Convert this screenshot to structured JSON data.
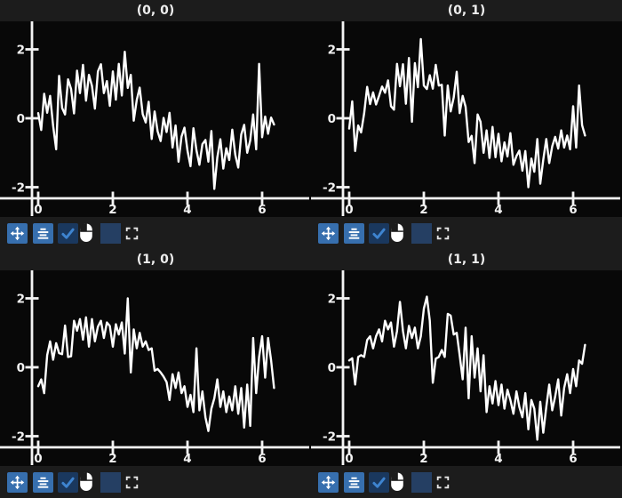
{
  "page": {
    "colors": {
      "page-bg": "#1c1c1c",
      "plot-bg": "#080808",
      "axis": "#f3f3f3",
      "line": "#ffffff",
      "title-fg": "#ededed",
      "btn-blue": "#376fae",
      "btn-glyph": "#ffffff",
      "check-bg": "#1a385e",
      "check-fg": "#3e84d0",
      "swatch": "#253f63",
      "glyph": "#e8e8e8"
    }
  },
  "toolbar": {
    "note": "identical toolbar repeated under each of the four subplots",
    "icons": [
      {
        "name": "pan-move",
        "kind": "button",
        "bg": "#376fae"
      },
      {
        "name": "align-center",
        "kind": "button",
        "bg": "#376fae"
      },
      {
        "name": "checkbox-checked",
        "kind": "checkbox",
        "bg": "#1a385e",
        "check": "#3e84d0"
      },
      {
        "name": "mouse",
        "kind": "glyph",
        "color": "#ffffff"
      },
      {
        "name": "color-swatch",
        "kind": "swatch",
        "bg": "#253f63"
      },
      {
        "name": "expand-corners",
        "kind": "glyph-outline",
        "color": "#e8e8e8"
      }
    ]
  },
  "chart_data": {
    "type": "line",
    "layout": "2x2 grid of subplots, dark style, white noisy sine lines",
    "xticks": [
      0,
      2,
      4,
      6
    ],
    "yticks": [
      -2,
      0,
      2
    ],
    "xlim": [
      -1.0,
      7.3
    ],
    "ylim": [
      -2.85,
      2.8
    ],
    "grid": false,
    "legend": false,
    "x": [
      0,
      0.08,
      0.16,
      0.24,
      0.32,
      0.4,
      0.48,
      0.56,
      0.64,
      0.72,
      0.8,
      0.88,
      0.96,
      1.04,
      1.12,
      1.2,
      1.28,
      1.36,
      1.44,
      1.52,
      1.6,
      1.68,
      1.76,
      1.84,
      1.92,
      2,
      2.08,
      2.16,
      2.24,
      2.32,
      2.4,
      2.48,
      2.56,
      2.64,
      2.72,
      2.8,
      2.88,
      2.96,
      3.04,
      3.12,
      3.2,
      3.28,
      3.36,
      3.44,
      3.52,
      3.6,
      3.68,
      3.76,
      3.84,
      3.92,
      4,
      4.08,
      4.16,
      4.24,
      4.32,
      4.4,
      4.48,
      4.56,
      4.64,
      4.72,
      4.8,
      4.88,
      4.96,
      5.04,
      5.12,
      5.2,
      5.28,
      5.36,
      5.44,
      5.52,
      5.6,
      5.68,
      5.76,
      5.84,
      5.92,
      6,
      6.08,
      6.16,
      6.24,
      6.32
    ],
    "subplots": [
      {
        "title": "(0, 0)",
        "values": [
          0.15,
          -0.34,
          0.71,
          0.16,
          0.65,
          -0.22,
          -0.9,
          1.23,
          0.3,
          0.11,
          1.13,
          0.85,
          0.14,
          1.38,
          0.73,
          1.55,
          0.51,
          1.26,
          0.94,
          0.28,
          1.36,
          1.57,
          0.73,
          1.08,
          0.36,
          1.36,
          0.54,
          1.58,
          0.66,
          1.93,
          0.88,
          1.26,
          -0.07,
          0.53,
          0.89,
          0.12,
          -0.12,
          0.48,
          -0.6,
          0.2,
          -0.38,
          -0.66,
          0.01,
          -0.4,
          0.16,
          -0.85,
          -0.21,
          -1.26,
          -0.53,
          -0.27,
          -0.94,
          -1.39,
          -0.29,
          -0.93,
          -1.35,
          -0.75,
          -0.63,
          -1.26,
          -0.37,
          -2.05,
          -1.13,
          -0.61,
          -1.46,
          -0.87,
          -1.21,
          -0.33,
          -1.06,
          -1.43,
          -0.47,
          -0.19,
          -1.0,
          -0.64,
          0.11,
          -0.9,
          1.58,
          -0.55,
          0.05,
          -0.45,
          0.02,
          -0.18
        ]
      },
      {
        "title": "(0, 1)",
        "values": [
          -0.3,
          0.49,
          -0.95,
          -0.21,
          -0.41,
          0.14,
          0.91,
          0.41,
          0.75,
          0.4,
          0.65,
          0.92,
          0.74,
          1.1,
          0.35,
          0.25,
          1.58,
          0.93,
          1.57,
          0.42,
          1.75,
          -0.1,
          1.6,
          0.9,
          2.3,
          0.95,
          0.85,
          1.25,
          0.86,
          1.55,
          0.95,
          0.97,
          -0.5,
          0.95,
          0.2,
          0.6,
          1.35,
          0.15,
          0.65,
          0.33,
          -0.69,
          -0.51,
          -1.3,
          0.11,
          -0.1,
          -1.0,
          -0.35,
          -1.15,
          -0.25,
          -1.13,
          -0.45,
          -1.25,
          -0.7,
          -1.11,
          -0.43,
          -1.35,
          -1.1,
          -0.94,
          -1.52,
          -0.95,
          -2.0,
          -1.17,
          -1.55,
          -0.6,
          -1.9,
          -1.2,
          -0.6,
          -1.3,
          -0.81,
          -0.54,
          -0.88,
          -0.35,
          -0.85,
          -0.5,
          -0.9,
          0.35,
          -0.85,
          0.95,
          -0.2,
          -0.5
        ]
      },
      {
        "title": "(1, 0)",
        "values": [
          -0.55,
          -0.35,
          -0.75,
          0.35,
          0.75,
          0.22,
          0.7,
          0.41,
          0.38,
          1.21,
          0.3,
          0.32,
          1.35,
          1.06,
          1.4,
          0.8,
          1.45,
          0.6,
          1.4,
          0.75,
          1.18,
          1.35,
          0.85,
          1.3,
          1.2,
          0.6,
          1.25,
          0.95,
          1.3,
          0.4,
          2.0,
          -0.15,
          1.1,
          0.55,
          1.0,
          0.6,
          0.75,
          0.5,
          0.55,
          -0.1,
          -0.05,
          -0.15,
          -0.27,
          -0.43,
          -0.95,
          -0.2,
          -0.6,
          -0.15,
          -0.75,
          -0.55,
          -1.15,
          -0.8,
          -1.3,
          0.55,
          -1.25,
          -0.7,
          -1.45,
          -1.85,
          -1.2,
          -0.9,
          -0.35,
          -1.15,
          -0.7,
          -1.3,
          -0.85,
          -1.25,
          -0.55,
          -1.35,
          -0.6,
          -1.75,
          -0.5,
          -1.7,
          0.85,
          -0.75,
          0.3,
          0.9,
          -0.3,
          0.85,
          0.2,
          -0.6
        ]
      },
      {
        "title": "(1, 1)",
        "values": [
          0.2,
          0.26,
          -0.5,
          0.3,
          0.35,
          0.3,
          0.79,
          0.9,
          0.55,
          0.9,
          1.1,
          0.75,
          1.35,
          1.1,
          1.3,
          0.6,
          1.05,
          1.9,
          1.05,
          0.55,
          1.2,
          0.85,
          1.15,
          0.55,
          0.9,
          1.7,
          2.05,
          1.35,
          -0.45,
          0.25,
          0.3,
          0.5,
          0.3,
          1.55,
          1.5,
          0.95,
          1.0,
          0.35,
          -0.35,
          1.15,
          -0.9,
          0.9,
          -0.3,
          0.55,
          -0.7,
          0.35,
          -1.3,
          -0.55,
          -1.05,
          -0.4,
          -1.1,
          -0.5,
          -1.2,
          -0.65,
          -0.95,
          -1.35,
          -0.7,
          -1.15,
          -1.45,
          -0.75,
          -1.8,
          -0.95,
          -1.2,
          -2.1,
          -1.0,
          -1.9,
          -1.15,
          -0.5,
          -1.25,
          -0.85,
          -0.35,
          -1.4,
          -0.6,
          -0.2,
          -0.75,
          -0.05,
          -0.55,
          0.2,
          0.1,
          0.65
        ]
      }
    ]
  }
}
